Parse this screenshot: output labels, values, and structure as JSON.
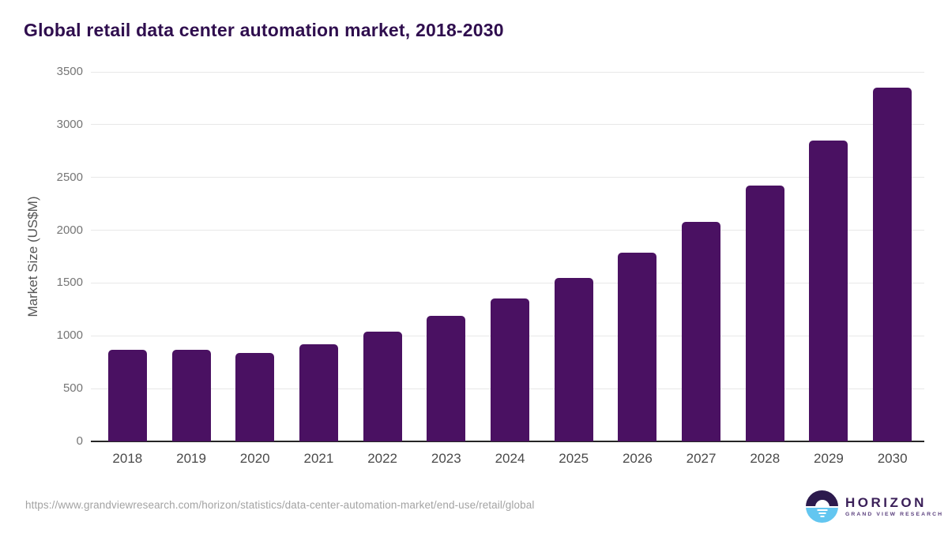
{
  "page": {
    "title": "Global retail data center automation market, 2018-2030"
  },
  "chart_data": {
    "type": "bar",
    "title": "Global retail data center automation market, 2018-2030",
    "categories": [
      "2018",
      "2019",
      "2020",
      "2021",
      "2022",
      "2023",
      "2024",
      "2025",
      "2026",
      "2027",
      "2028",
      "2029",
      "2030"
    ],
    "values": [
      866,
      871,
      838,
      922,
      1041,
      1186,
      1351,
      1549,
      1791,
      2076,
      2421,
      2846,
      3352
    ],
    "xlabel": "",
    "ylabel": "Market Size (US$M)",
    "ylim": [
      0,
      3500
    ],
    "ytick_step": 500,
    "yticks": [
      0,
      500,
      1000,
      1500,
      2000,
      2500,
      3000,
      3500
    ],
    "grid": true,
    "legend": "none",
    "bar_color": "#4a1162",
    "title_color": "#2f0e4e",
    "gridline_color": "#e8e8e8",
    "axis_line_color": "#262626"
  },
  "footer": {
    "source_url": "https://www.grandviewresearch.com/horizon/statistics/data-center-automation-market/end-use/retail/global",
    "logo": {
      "name": "HORIZON",
      "subtitle": "GRAND VIEW RESEARCH"
    }
  }
}
